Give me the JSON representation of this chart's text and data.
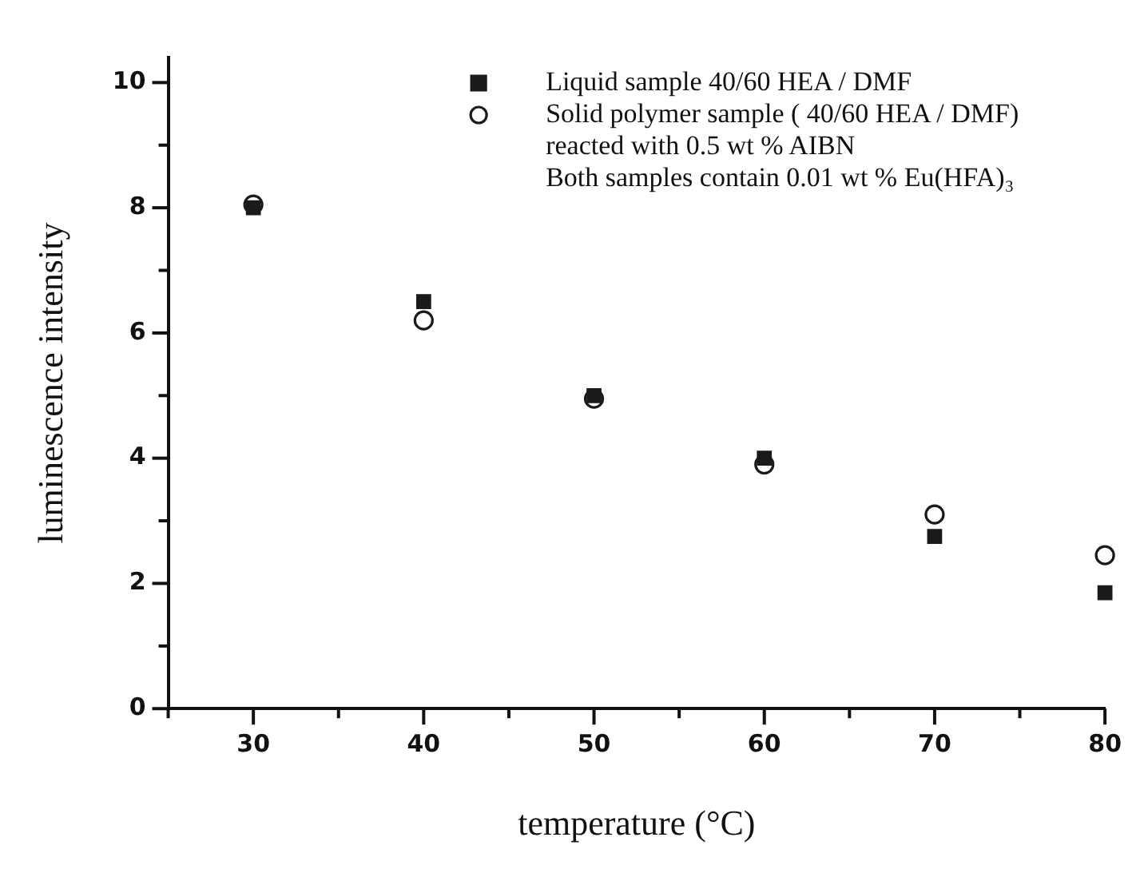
{
  "chart_data": {
    "type": "scatter",
    "xlabel": "temperature (°C)",
    "ylabel": "luminescence intensity",
    "x": [
      30,
      40,
      50,
      60,
      70,
      80
    ],
    "series": [
      {
        "name": "Liquid sample 40/60 HEA / DMF",
        "color": "#1a1a1a",
        "marker": "square",
        "values": [
          8.0,
          6.5,
          5.0,
          4.0,
          2.75,
          1.85
        ]
      },
      {
        "name": "Solid polymer sample ( 40/60 HEA / DMF) reacted with 0.5 wt % AIBN",
        "color": "#1a1a1a",
        "marker": "circle",
        "values": [
          8.05,
          6.2,
          4.95,
          3.9,
          3.1,
          2.45
        ]
      }
    ],
    "annotations": [
      "Both samples contain 0.01 wt % Eu(HFA)₃"
    ],
    "xlim": [
      25,
      80
    ],
    "xticks": [
      {
        "value": 25,
        "label": null
      },
      30,
      {
        "value": 35,
        "label": null
      },
      40,
      {
        "value": 45,
        "label": null
      },
      50,
      {
        "value": 55,
        "label": null
      },
      60,
      {
        "value": 65,
        "label": null
      },
      70,
      {
        "value": 75,
        "label": null
      },
      80
    ],
    "ylim": [
      0,
      10.4
    ],
    "yticks": [
      0,
      {
        "value": 1,
        "label": null
      },
      2,
      {
        "value": 3,
        "label": null
      },
      4,
      {
        "value": 5,
        "label": null
      },
      6,
      {
        "value": 7,
        "label": null
      },
      8,
      {
        "value": 9,
        "label": null
      },
      10
    ],
    "grid": false,
    "legend": "top right"
  }
}
